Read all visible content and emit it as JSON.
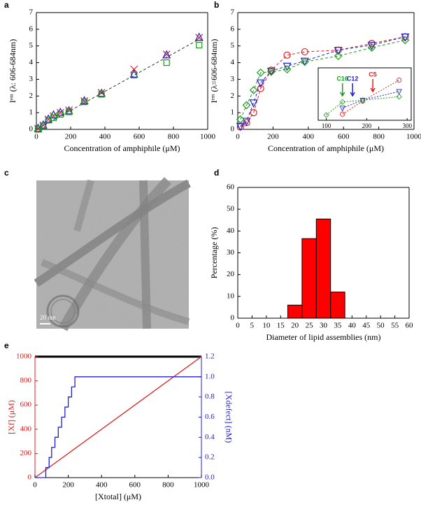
{
  "chart_data": [
    {
      "type": "scatter",
      "label": "a",
      "x_label": "Concentration of amphiphile (μM)",
      "y_label": "Iᵉᵐ (λ: 606-684nm)",
      "xlim": [
        0,
        1000
      ],
      "ylim": [
        0,
        7
      ],
      "xticks": [
        0,
        200,
        400,
        600,
        800,
        1000
      ],
      "yticks": [
        0,
        1,
        2,
        3,
        4,
        5,
        6,
        7
      ],
      "x": [
        10,
        40,
        70,
        100,
        140,
        190,
        280,
        380,
        570,
        760,
        950
      ],
      "series": [
        {
          "color": "#e02020",
          "marker": "x",
          "values": [
            0.05,
            0.25,
            0.6,
            0.8,
            1.0,
            1.15,
            1.7,
            2.2,
            3.6,
            4.5,
            5.5
          ]
        },
        {
          "color": "#2020d0",
          "marker": "triangle",
          "values": [
            0.05,
            0.25,
            0.6,
            0.85,
            1.0,
            1.1,
            1.7,
            2.15,
            3.3,
            4.45,
            5.5
          ]
        },
        {
          "color": "#1a9a1a",
          "marker": "square",
          "values": [
            0,
            0.2,
            0.55,
            0.7,
            0.9,
            1.05,
            1.65,
            2.1,
            3.25,
            4.0,
            5.05
          ]
        },
        {
          "color": "#333333",
          "marker": "none",
          "line": "dashed",
          "x": [
            0,
            950
          ],
          "values": [
            0,
            5.4
          ]
        }
      ]
    },
    {
      "type": "scatter",
      "label": "b",
      "x_label": "Concentration of amphiphile (μM)",
      "y_label": "Iᵉᵐ (λ=606-684nm)",
      "xlim": [
        0,
        1000
      ],
      "ylim": [
        0,
        7
      ],
      "xticks": [
        0,
        200,
        400,
        600,
        800,
        1000
      ],
      "yticks": [
        0,
        1,
        2,
        3,
        4,
        5,
        6,
        7
      ],
      "x": [
        15,
        50,
        90,
        130,
        190,
        280,
        380,
        570,
        760,
        950
      ],
      "series": [
        {
          "color": "#e02020",
          "marker": "circle",
          "line": "dashed",
          "values": [
            0.15,
            0.4,
            1.0,
            2.45,
            3.55,
            4.45,
            4.65,
            4.75,
            5.15,
            5.55
          ]
        },
        {
          "color": "#2020d0",
          "marker": "triangle-down",
          "line": "dashed",
          "values": [
            0.2,
            0.5,
            1.6,
            2.8,
            3.5,
            3.8,
            4.1,
            4.75,
            5.05,
            5.55
          ]
        },
        {
          "color": "#1a9a1a",
          "marker": "diamond",
          "line": "dashed",
          "values": [
            0.6,
            1.45,
            2.35,
            3.4,
            3.45,
            3.6,
            4.05,
            4.4,
            4.9,
            5.35
          ]
        }
      ],
      "inset": {
        "xlim": [
          80,
          310
        ],
        "ylim": [
          0,
          3
        ],
        "xticks": [
          100,
          200,
          300
        ],
        "series": [
          {
            "color": "#e02020",
            "marker": "circle",
            "x": [
              140,
              190,
              280
            ],
            "values": [
              0.35,
              1.1,
              2.3
            ]
          },
          {
            "color": "#2020d0",
            "marker": "triangle-down",
            "x": [
              140,
              190,
              280
            ],
            "values": [
              0.7,
              1.15,
              1.65
            ]
          },
          {
            "color": "#1a9a1a",
            "marker": "diamond",
            "x": [
              100,
              140,
              190,
              280
            ],
            "values": [
              0.3,
              1.05,
              1.15,
              1.35
            ]
          }
        ],
        "annotations": [
          {
            "text": "C16",
            "x": 140,
            "color": "#1a9a1a"
          },
          {
            "text": "C12",
            "x": 165,
            "color": "#2020d0"
          },
          {
            "text": "C5",
            "x": 215,
            "color": "#e02020"
          }
        ]
      }
    },
    {
      "type": "image",
      "label": "c",
      "scale_bar_label": "20 nm"
    },
    {
      "type": "histogram",
      "label": "d",
      "x_label": "Diameter of lipid assemblies (nm)",
      "y_label": "Percentage (%)",
      "xlim": [
        0,
        60
      ],
      "ylim": [
        0,
        60
      ],
      "xticks": [
        0,
        5,
        10,
        15,
        20,
        25,
        30,
        35,
        40,
        45,
        50,
        55,
        60
      ],
      "yticks": [
        0,
        10,
        20,
        30,
        40,
        50,
        60
      ],
      "bins": [
        17.5,
        22.5,
        27.5,
        32.5,
        37.5
      ],
      "values": [
        6,
        36.5,
        45.5,
        12
      ],
      "color": "#ff0000"
    },
    {
      "type": "line",
      "label": "e",
      "x_label": "[Xtotal] (μM)",
      "y_label": "[Xf] (μM)",
      "y2_label": "[Xdefect] (nM)",
      "xlim": [
        0,
        1000
      ],
      "ylim": [
        0,
        1000
      ],
      "y2lim": [
        0,
        1.2
      ],
      "xticks": [
        0,
        200,
        400,
        600,
        800,
        1000
      ],
      "yticks": [
        0,
        200,
        400,
        600,
        800,
        1000
      ],
      "y2ticks": [
        {
          "value": 0,
          "label": "0.0"
        },
        0.2,
        0.4,
        0.6,
        0.8,
        {
          "value": 1,
          "label": "1.0"
        },
        1.2
      ],
      "y_color": "#e02020",
      "y2_color": "#2020d0",
      "series": [
        {
          "color": "#e02020",
          "x": [
            0,
            1000
          ],
          "values": [
            0,
            1000
          ]
        },
        {
          "color": "#2020d0",
          "axis": "y2",
          "x": [
            0,
            65,
            65,
            85,
            85,
            100,
            100,
            120,
            120,
            140,
            140,
            160,
            160,
            180,
            180,
            200,
            200,
            220,
            220,
            240,
            240,
            1000
          ],
          "values": [
            0,
            0,
            0.1,
            0.1,
            0.2,
            0.2,
            0.3,
            0.3,
            0.4,
            0.4,
            0.5,
            0.5,
            0.6,
            0.6,
            0.7,
            0.7,
            0.8,
            0.8,
            0.9,
            0.9,
            1.0,
            1.0
          ]
        }
      ]
    }
  ]
}
